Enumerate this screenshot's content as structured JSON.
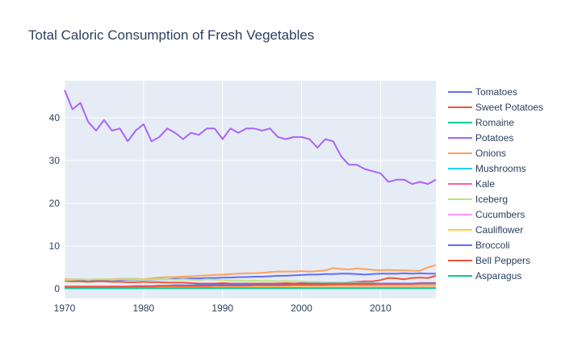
{
  "chart_data": {
    "type": "line",
    "title": "Total Caloric Consumption of Fresh Vegetables",
    "xlabel": "",
    "ylabel": "",
    "xlim": [
      1970,
      2017
    ],
    "ylim": [
      -2.3,
      48.7
    ],
    "x_ticks": [
      1970,
      1980,
      1990,
      2000,
      2010
    ],
    "y_ticks": [
      0,
      10,
      20,
      30,
      40
    ],
    "grid": true,
    "legend_position": "right",
    "plot_bgcolor": "#e5ecf6",
    "x": [
      1970,
      1971,
      1972,
      1973,
      1974,
      1975,
      1976,
      1977,
      1978,
      1979,
      1980,
      1981,
      1982,
      1983,
      1984,
      1985,
      1986,
      1987,
      1988,
      1989,
      1990,
      1991,
      1992,
      1993,
      1994,
      1995,
      1996,
      1997,
      1998,
      1999,
      2000,
      2001,
      2002,
      2003,
      2004,
      2005,
      2006,
      2007,
      2008,
      2009,
      2010,
      2011,
      2012,
      2013,
      2014,
      2015,
      2016,
      2017
    ],
    "series": [
      {
        "name": "Tomatoes",
        "color": "#636efa",
        "values": [
          2.0,
          2.0,
          2.0,
          2.0,
          2.0,
          2.0,
          2.0,
          2.0,
          2.1,
          2.1,
          2.1,
          2.1,
          2.2,
          2.2,
          2.3,
          2.3,
          2.4,
          2.4,
          2.5,
          2.5,
          2.6,
          2.6,
          2.7,
          2.7,
          2.8,
          2.8,
          2.9,
          3.0,
          3.0,
          3.1,
          3.2,
          3.3,
          3.3,
          3.4,
          3.4,
          3.5,
          3.5,
          3.4,
          3.3,
          3.4,
          3.5,
          3.5,
          3.5,
          3.6,
          3.5,
          3.6,
          3.5,
          3.5
        ]
      },
      {
        "name": "Sweet Potatoes",
        "color": "#ef553b",
        "values": [
          1.8,
          1.7,
          1.7,
          1.6,
          1.7,
          1.7,
          1.6,
          1.6,
          1.5,
          1.5,
          1.6,
          1.5,
          1.5,
          1.4,
          1.4,
          1.4,
          1.3,
          1.2,
          1.2,
          1.2,
          1.3,
          1.2,
          1.2,
          1.2,
          1.2,
          1.2,
          1.2,
          1.2,
          1.3,
          1.2,
          1.3,
          1.3,
          1.4,
          1.4,
          1.4,
          1.4,
          1.5,
          1.6,
          1.7,
          1.7,
          2.0,
          2.5,
          2.4,
          2.2,
          2.5,
          2.6,
          2.5,
          3.0
        ]
      },
      {
        "name": "Romaine",
        "color": "#00cc96",
        "values": [
          0.3,
          0.3,
          0.3,
          0.3,
          0.3,
          0.3,
          0.3,
          0.3,
          0.3,
          0.3,
          0.3,
          0.3,
          0.3,
          0.4,
          0.4,
          0.4,
          0.5,
          0.5,
          0.5,
          0.5,
          0.6,
          0.6,
          0.6,
          0.7,
          0.7,
          0.7,
          0.7,
          0.8,
          0.8,
          0.8,
          0.9,
          0.9,
          0.9,
          1.0,
          1.0,
          1.0,
          1.0,
          1.0,
          1.0,
          1.0,
          1.0,
          1.0,
          1.0,
          1.0,
          1.0,
          1.0,
          1.0,
          1.0
        ]
      },
      {
        "name": "Potatoes",
        "color": "#ab63fa",
        "values": [
          46.5,
          42.0,
          43.5,
          39.0,
          37.0,
          39.5,
          37.0,
          37.5,
          34.5,
          37.0,
          38.5,
          34.5,
          35.5,
          37.5,
          36.5,
          35.0,
          36.5,
          36.0,
          37.5,
          37.5,
          35.0,
          37.5,
          36.5,
          37.5,
          37.5,
          37.0,
          37.5,
          35.5,
          35.0,
          35.5,
          35.5,
          35.0,
          33.0,
          35.0,
          34.5,
          31.0,
          29.0,
          29.0,
          28.0,
          27.5,
          27.0,
          25.0,
          25.5,
          25.5,
          24.5,
          25.0,
          24.5,
          25.5
        ]
      },
      {
        "name": "Onions",
        "color": "#ffa15a",
        "values": [
          2.2,
          2.2,
          2.2,
          2.1,
          2.2,
          2.2,
          2.2,
          2.3,
          2.3,
          2.3,
          2.2,
          2.4,
          2.6,
          2.7,
          2.7,
          2.8,
          2.9,
          3.0,
          3.1,
          3.2,
          3.3,
          3.4,
          3.5,
          3.6,
          3.6,
          3.7,
          3.9,
          4.0,
          4.0,
          4.0,
          4.1,
          4.0,
          4.1,
          4.3,
          4.8,
          4.6,
          4.5,
          4.7,
          4.6,
          4.4,
          4.3,
          4.4,
          4.3,
          4.3,
          4.2,
          4.2,
          5.0,
          5.5
        ]
      },
      {
        "name": "Mushrooms",
        "color": "#19d3f3",
        "values": [
          0.1,
          0.1,
          0.1,
          0.1,
          0.1,
          0.1,
          0.1,
          0.1,
          0.1,
          0.1,
          0.2,
          0.2,
          0.2,
          0.2,
          0.2,
          0.2,
          0.2,
          0.2,
          0.2,
          0.2,
          0.2,
          0.2,
          0.2,
          0.3,
          0.3,
          0.3,
          0.3,
          0.3,
          0.3,
          0.3,
          0.3,
          0.3,
          0.3,
          0.3,
          0.3,
          0.3,
          0.3,
          0.3,
          0.3,
          0.3,
          0.3,
          0.3,
          0.3,
          0.3,
          0.3,
          0.3,
          0.3,
          0.3
        ]
      },
      {
        "name": "Kale",
        "color": "#ff6692",
        "values": [
          0.4,
          0.4,
          0.4,
          0.4,
          0.4,
          0.4,
          0.4,
          0.4,
          0.4,
          0.4,
          0.4,
          0.4,
          0.4,
          0.4,
          0.4,
          0.4,
          0.4,
          0.4,
          0.4,
          0.4,
          0.4,
          0.4,
          0.4,
          0.4,
          0.4,
          0.4,
          0.4,
          0.4,
          0.4,
          0.4,
          0.4,
          0.4,
          0.4,
          0.4,
          0.4,
          0.4,
          0.4,
          0.4,
          0.4,
          0.4,
          0.4,
          0.4,
          0.4,
          0.5,
          0.5,
          0.5,
          0.5,
          0.5
        ]
      },
      {
        "name": "Iceberg",
        "color": "#b6e880",
        "values": [
          2.0,
          2.1,
          2.2,
          2.1,
          2.2,
          2.2,
          2.1,
          2.2,
          2.2,
          2.2,
          2.1,
          2.2,
          2.2,
          2.2,
          2.1,
          2.2,
          2.1,
          2.0,
          2.2,
          2.1,
          2.0,
          1.9,
          1.9,
          1.8,
          1.9,
          1.8,
          1.8,
          1.7,
          1.8,
          1.7,
          1.7,
          1.6,
          1.6,
          1.5,
          1.5,
          1.5,
          1.4,
          1.4,
          1.3,
          1.3,
          1.2,
          1.2,
          1.2,
          1.2,
          1.1,
          1.1,
          1.1,
          1.1
        ]
      },
      {
        "name": "Cucumbers",
        "color": "#ff97ff",
        "values": [
          0.5,
          0.5,
          0.5,
          0.5,
          0.5,
          0.5,
          0.5,
          0.5,
          0.5,
          0.5,
          0.5,
          0.5,
          0.5,
          0.5,
          0.5,
          0.5,
          0.6,
          0.6,
          0.6,
          0.6,
          0.6,
          0.6,
          0.6,
          0.6,
          0.6,
          0.6,
          0.6,
          0.6,
          0.7,
          0.7,
          0.7,
          0.7,
          0.7,
          0.7,
          0.7,
          0.7,
          0.7,
          0.7,
          0.7,
          0.7,
          0.7,
          0.7,
          0.7,
          0.7,
          0.7,
          0.7,
          0.7,
          0.7
        ]
      },
      {
        "name": "Cauliflower",
        "color": "#fecb52",
        "values": [
          0.3,
          0.3,
          0.3,
          0.3,
          0.3,
          0.3,
          0.3,
          0.3,
          0.3,
          0.3,
          0.3,
          0.3,
          0.3,
          0.3,
          0.3,
          0.4,
          0.4,
          0.5,
          0.5,
          0.5,
          0.5,
          0.5,
          0.5,
          0.5,
          0.5,
          0.5,
          0.5,
          0.5,
          0.5,
          0.5,
          0.5,
          0.4,
          0.4,
          0.4,
          0.4,
          0.4,
          0.4,
          0.4,
          0.4,
          0.4,
          0.4,
          0.4,
          0.4,
          0.4,
          0.4,
          0.4,
          0.4,
          0.4
        ]
      },
      {
        "name": "Broccoli",
        "color": "#636efa",
        "values": [
          0.4,
          0.4,
          0.4,
          0.4,
          0.4,
          0.4,
          0.5,
          0.5,
          0.5,
          0.6,
          0.6,
          0.6,
          0.7,
          0.7,
          0.8,
          0.8,
          0.8,
          0.9,
          0.9,
          1.0,
          1.0,
          1.0,
          1.0,
          1.0,
          1.1,
          1.1,
          1.1,
          1.1,
          1.1,
          1.1,
          1.2,
          1.2,
          1.2,
          1.2,
          1.2,
          1.2,
          1.2,
          1.2,
          1.2,
          1.2,
          1.2,
          1.2,
          1.2,
          1.2,
          1.2,
          1.3,
          1.3,
          1.3
        ]
      },
      {
        "name": "Bell Peppers",
        "color": "#ef553b",
        "values": [
          0.5,
          0.5,
          0.5,
          0.5,
          0.5,
          0.5,
          0.5,
          0.5,
          0.5,
          0.5,
          0.5,
          0.5,
          0.6,
          0.6,
          0.6,
          0.6,
          0.6,
          0.6,
          0.6,
          0.7,
          0.7,
          0.7,
          0.7,
          0.7,
          0.8,
          0.8,
          0.8,
          0.8,
          0.8,
          0.9,
          0.9,
          0.9,
          0.9,
          0.9,
          1.0,
          1.0,
          1.0,
          1.0,
          1.0,
          1.0,
          1.1,
          1.1,
          1.1,
          1.1,
          1.1,
          1.2,
          1.2,
          1.2
        ]
      },
      {
        "name": "Asparagus",
        "color": "#00cc96",
        "values": [
          0.1,
          0.1,
          0.1,
          0.1,
          0.1,
          0.1,
          0.1,
          0.1,
          0.1,
          0.1,
          0.1,
          0.1,
          0.1,
          0.1,
          0.1,
          0.1,
          0.1,
          0.1,
          0.1,
          0.1,
          0.1,
          0.1,
          0.1,
          0.1,
          0.1,
          0.1,
          0.1,
          0.1,
          0.1,
          0.1,
          0.1,
          0.1,
          0.1,
          0.1,
          0.1,
          0.1,
          0.1,
          0.1,
          0.1,
          0.1,
          0.1,
          0.1,
          0.1,
          0.1,
          0.1,
          0.1,
          0.1,
          0.1
        ]
      }
    ]
  }
}
